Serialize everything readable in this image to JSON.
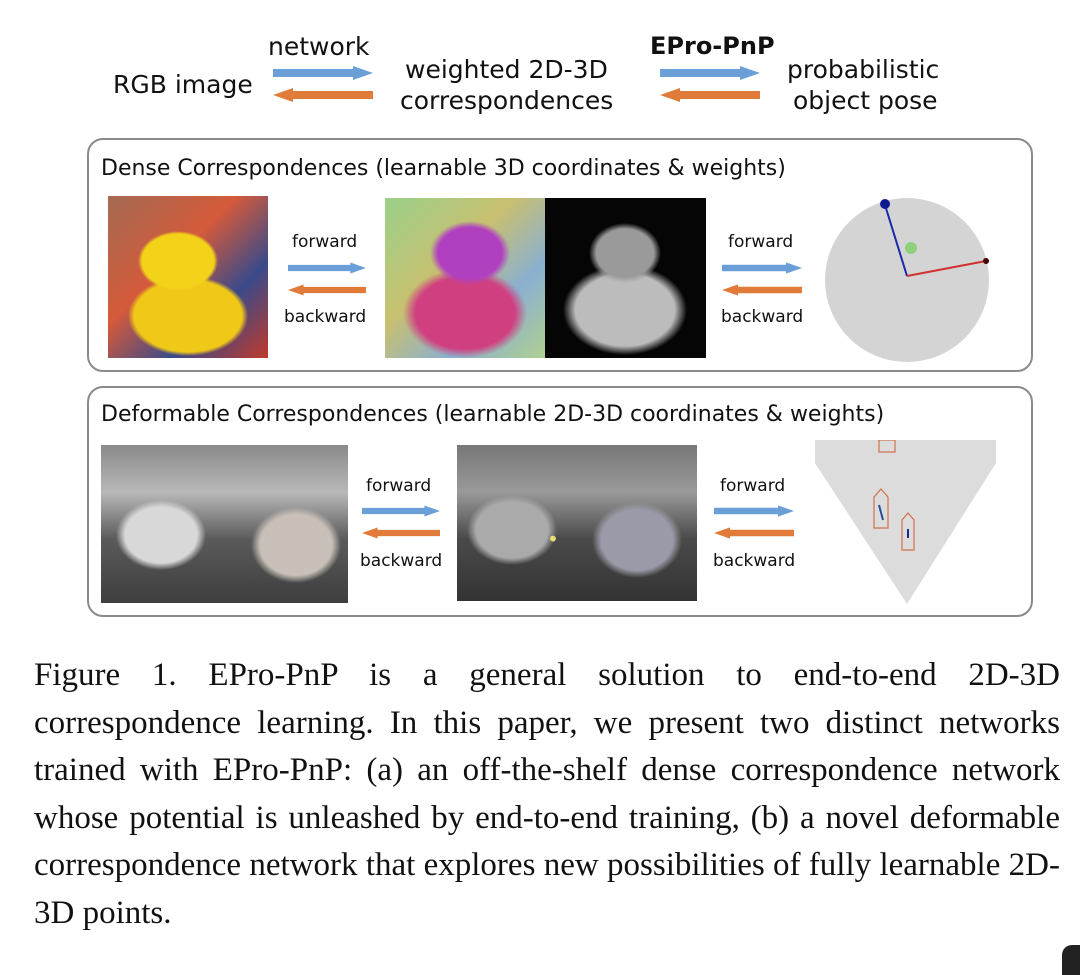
{
  "header": {
    "input_label": "RGB image",
    "network_label": "network",
    "middle_label_line1": "weighted 2D-3D",
    "middle_label_line2": "correspondences",
    "method_label": "EPro-PnP",
    "output_label_line1": "probabilistic",
    "output_label_line2": "object pose"
  },
  "dense_panel": {
    "title": "Dense Correspondences (learnable 3D coordinates & weights)",
    "forward_label": "forward",
    "backward_label": "backward"
  },
  "deformable_panel": {
    "title": "Deformable Correspondences (learnable 2D-3D coordinates & weights)",
    "forward_label": "forward",
    "backward_label": "backward"
  },
  "colors": {
    "forward_arrow": "#6a9fd8",
    "backward_arrow": "#e07b39",
    "border": "#8a8a8a"
  },
  "caption": "Figure 1.  EPro-PnP is a general solution to end-to-end 2D-3D correspondence learning.  In this paper, we present two distinct networks trained with EPro-PnP: (a) an off-the-shelf dense correspondence network whose potential is unleashed by end-to-end training, (b) a novel deformable correspondence network that explores new possibilities of fully learnable 2D-3D points."
}
